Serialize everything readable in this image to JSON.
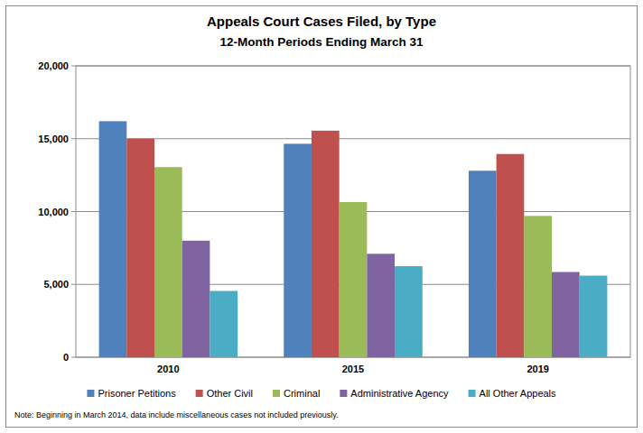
{
  "chart_data": {
    "type": "bar",
    "title": "Appeals Court Cases Filed, by Type",
    "subtitle": "12-Month Periods Ending March 31",
    "categories": [
      "2010",
      "2015",
      "2019"
    ],
    "series": [
      {
        "name": "Prisoner Petitions",
        "color": "#4f81bd",
        "values": [
          16200,
          14650,
          12800
        ]
      },
      {
        "name": "Other Civil",
        "color": "#c0504d",
        "values": [
          15000,
          15550,
          13950
        ]
      },
      {
        "name": "Criminal",
        "color": "#9bbb59",
        "values": [
          13050,
          10650,
          9700
        ]
      },
      {
        "name": "Administrative Agency",
        "color": "#8064a2",
        "values": [
          8000,
          7100,
          5850
        ]
      },
      {
        "name": "All Other Appeals",
        "color": "#4bacc6",
        "values": [
          4550,
          6250,
          5600
        ]
      }
    ],
    "ylim": [
      0,
      20000
    ],
    "yticks": [
      0,
      {
        "value": 5000,
        "label": "5,000"
      },
      {
        "value": 10000,
        "label": "10,000"
      },
      {
        "value": 15000,
        "label": "15,000"
      },
      {
        "value": 20000,
        "label": "20,000"
      }
    ],
    "grid": true,
    "legend": "bottom",
    "annotations": [
      "Note: Beginning in March 2014, data include miscellaneous cases not included previously."
    ]
  }
}
